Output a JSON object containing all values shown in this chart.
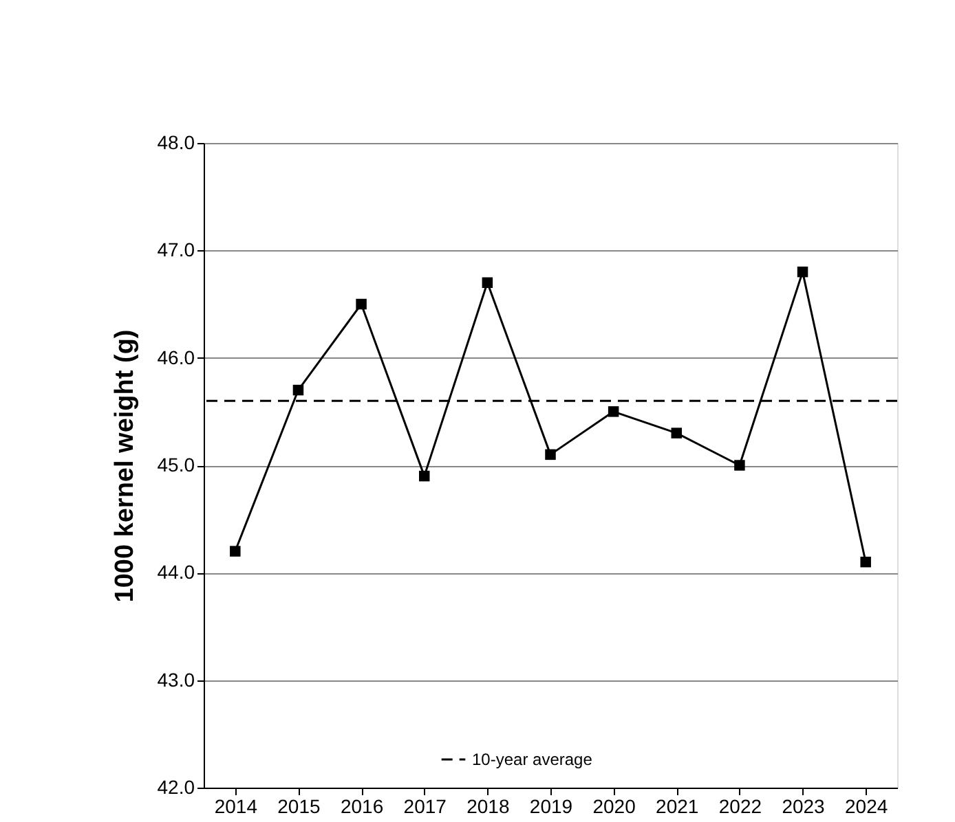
{
  "chart_data": {
    "type": "line",
    "ylabel": "1000 kernel weight (g)",
    "categories": [
      "2014",
      "2015",
      "2016",
      "2017",
      "2018",
      "2019",
      "2020",
      "2021",
      "2022",
      "2023",
      "2024"
    ],
    "series": [
      {
        "color": "#000000",
        "values": [
          44.2,
          45.7,
          46.5,
          44.9,
          46.7,
          45.1,
          45.5,
          45.3,
          45.0,
          46.8,
          44.1
        ]
      }
    ],
    "ylim": [
      42.0,
      48.0
    ],
    "yticks": [
      {
        "value": 42,
        "label": "42.0"
      },
      {
        "value": 43,
        "label": "43.0"
      },
      {
        "value": 44,
        "label": "44.0"
      },
      {
        "value": 45,
        "label": "45.0"
      },
      {
        "value": 46,
        "label": "46.0"
      },
      {
        "value": 47,
        "label": "47.0"
      },
      {
        "value": 48,
        "label": "48.0"
      }
    ],
    "ref_lines": [
      {
        "axis": "y",
        "value": 45.6,
        "label": "10-year average",
        "color": "#000000",
        "line_style": "dashed"
      }
    ],
    "grid": "y",
    "legend": "bottom",
    "marker": "square",
    "line_style": "solid"
  }
}
